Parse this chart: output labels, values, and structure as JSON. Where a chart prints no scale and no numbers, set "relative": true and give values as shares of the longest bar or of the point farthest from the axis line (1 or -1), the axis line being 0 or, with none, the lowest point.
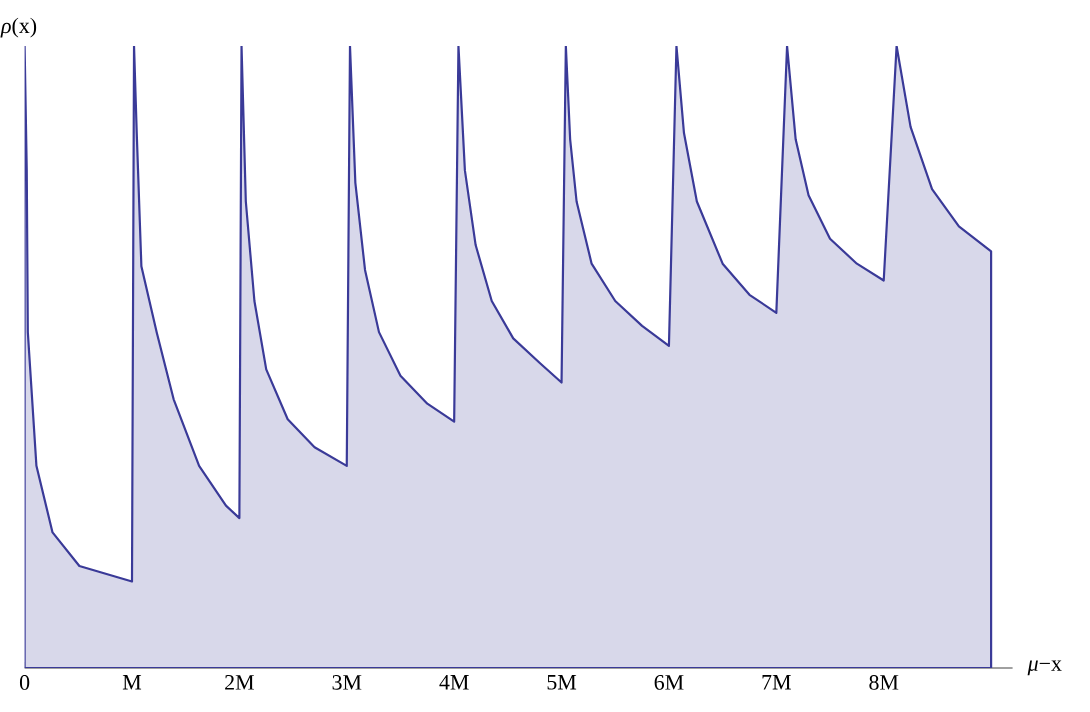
{
  "chart_data": {
    "type": "area",
    "relative": true,
    "xlabel": "*μ*−x",
    "ylabel": "*ρ*(x)",
    "xlim": [
      0,
      9.2
    ],
    "xticks": [
      0,
      {
        "value": 1,
        "label": "M"
      },
      {
        "value": 2,
        "label": "2M"
      },
      {
        "value": 3,
        "label": "3M"
      },
      {
        "value": 4,
        "label": "4M"
      },
      {
        "value": 5,
        "label": "5M"
      },
      {
        "value": 6,
        "label": "6M"
      },
      {
        "value": 7,
        "label": "7M"
      },
      {
        "value": 8,
        "label": "8M"
      }
    ],
    "series": [
      {
        "color": "#d8d8ea",
        "x": [
          0,
          0,
          0.02,
          0.03,
          0.11,
          0.26,
          0.51,
          1,
          1.019,
          1.044,
          1.0875,
          1.231,
          1.388,
          1.625,
          1.875,
          2,
          2.02,
          2.06,
          2.14,
          2.25,
          2.45,
          2.7,
          3,
          3.03,
          3.08,
          3.17,
          3.3,
          3.5,
          3.75,
          4,
          4.04,
          4.1,
          4.2,
          4.35,
          4.55,
          4.8,
          5,
          5.04,
          5.08,
          5.14,
          5.28,
          5.5,
          5.75,
          6,
          6.07,
          6.14,
          6.26,
          6.5,
          6.75,
          7,
          7.1,
          7.18,
          7.3,
          7.5,
          7.75,
          8,
          8.12,
          8.25,
          8.45,
          8.7,
          9
        ],
        "values": [
          0,
          1,
          0.8,
          0.54,
          0.325,
          0.218,
          0.164,
          0.139,
          1,
          0.861,
          0.646,
          0.539,
          0.432,
          0.325,
          0.261,
          0.241,
          1,
          0.75,
          0.59,
          0.48,
          0.4,
          0.355,
          0.325,
          1,
          0.78,
          0.64,
          0.54,
          0.47,
          0.425,
          0.396,
          1,
          0.8,
          0.68,
          0.59,
          0.53,
          0.49,
          0.459,
          1,
          0.85,
          0.75,
          0.65,
          0.59,
          0.55,
          0.518,
          1,
          0.86,
          0.75,
          0.65,
          0.6,
          0.571,
          1,
          0.85,
          0.76,
          0.69,
          0.65,
          0.623,
          1,
          0.87,
          0.77,
          0.71,
          0.67
        ]
      }
    ]
  }
}
